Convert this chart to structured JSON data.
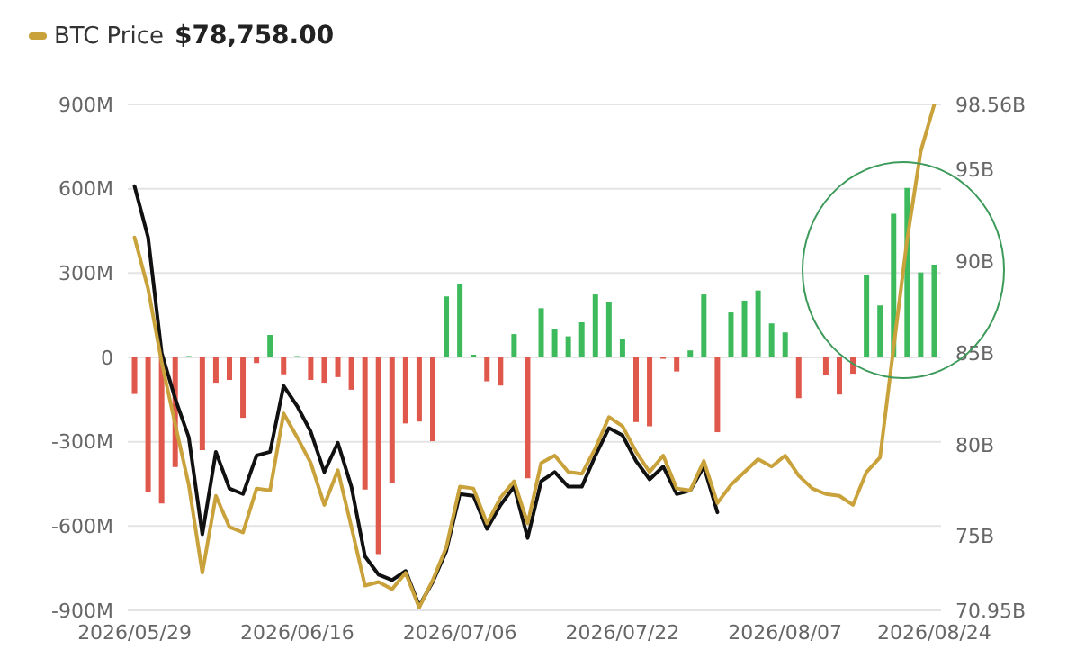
{
  "chart_data": {
    "type": "bar",
    "categories": [
      "2026/05/29",
      null,
      null,
      null,
      null,
      null,
      null,
      null,
      null,
      null,
      null,
      null,
      "2026/06/16",
      null,
      null,
      null,
      null,
      null,
      null,
      null,
      null,
      null,
      null,
      null,
      "2026/07/06",
      null,
      null,
      null,
      null,
      null,
      null,
      null,
      null,
      null,
      null,
      null,
      "2026/07/22",
      null,
      null,
      null,
      null,
      null,
      null,
      null,
      null,
      null,
      null,
      null,
      "2026/08/07",
      null,
      null,
      null,
      null,
      null,
      null,
      null,
      null,
      null,
      null,
      "2026/08/24"
    ],
    "series": [
      {
        "values": [
          -130,
          -480,
          -520,
          -390,
          5,
          -330,
          -90,
          -80,
          -215,
          -20,
          80,
          -60,
          5,
          -80,
          -90,
          -70,
          -115,
          -470,
          -700,
          -445,
          -235,
          -228,
          -298,
          217,
          262,
          10,
          -85,
          -100,
          83,
          -430,
          175,
          100,
          75,
          125,
          224,
          196,
          64,
          -230,
          -245,
          -5,
          -50,
          25,
          224,
          -266,
          160,
          202,
          238,
          121,
          89,
          -145,
          0,
          -64,
          -132,
          -58,
          294,
          185,
          511,
          603,
          302,
          330
        ],
        "colors": [
          "#e0574b",
          "#e0574b",
          "#e0574b",
          "#e0574b",
          "#3dbb5c",
          "#e0574b",
          "#e0574b",
          "#e0574b",
          "#e0574b",
          "#e0574b",
          "#3dbb5c",
          "#e0574b",
          "#3dbb5c",
          "#e0574b",
          "#e0574b",
          "#e0574b",
          "#e0574b",
          "#e0574b",
          "#e0574b",
          "#e0574b",
          "#e0574b",
          "#e0574b",
          "#e0574b",
          "#3dbb5c",
          "#3dbb5c",
          "#3dbb5c",
          "#e0574b",
          "#e0574b",
          "#3dbb5c",
          "#e0574b",
          "#3dbb5c",
          "#3dbb5c",
          "#3dbb5c",
          "#3dbb5c",
          "#3dbb5c",
          "#3dbb5c",
          "#3dbb5c",
          "#e0574b",
          "#e0574b",
          "#e0574b",
          "#e0574b",
          "#3dbb5c",
          "#3dbb5c",
          "#e0574b",
          "#3dbb5c",
          "#3dbb5c",
          "#3dbb5c",
          "#3dbb5c",
          "#3dbb5c",
          "#e0574b",
          "#e0574b",
          "#e0574b",
          "#e0574b",
          "#e0574b",
          "#3dbb5c",
          "#3dbb5c",
          "#3dbb5c",
          "#3dbb5c",
          "#3dbb5c",
          "#3dbb5c"
        ]
      },
      {
        "type": "line",
        "axis": "y2",
        "color": "#111111",
        "values": [
          94.1,
          91.3,
          85.0,
          82.5,
          80.4,
          75.1,
          79.6,
          77.6,
          77.3,
          79.4,
          79.6,
          83.2,
          82.1,
          80.7,
          78.5,
          80.1,
          77.7,
          73.9,
          72.9,
          72.6,
          73.1,
          71.2,
          72.5,
          74.2,
          77.3,
          77.2,
          75.4,
          76.7,
          77.7,
          74.9,
          78.0,
          78.5,
          77.7,
          77.7,
          79.4,
          80.9,
          80.5,
          79.1,
          78.1,
          78.8,
          77.3,
          77.5,
          78.8,
          76.3,
          null,
          null,
          null,
          null,
          null,
          null,
          null,
          null,
          null,
          null,
          null,
          null,
          null,
          null,
          null,
          null
        ]
      },
      {
        "type": "line",
        "axis": "y2",
        "name": "BTC Price",
        "color": "#c9a23c",
        "values": [
          91.3,
          88.5,
          84.5,
          81.1,
          77.8,
          73.0,
          77.2,
          75.5,
          75.2,
          77.6,
          77.5,
          81.7,
          80.4,
          79.0,
          76.7,
          78.6,
          75.5,
          72.3,
          72.5,
          72.1,
          73.0,
          71.1,
          72.6,
          74.4,
          77.7,
          77.6,
          75.7,
          77.1,
          78.0,
          75.7,
          79.0,
          79.4,
          78.5,
          78.4,
          79.8,
          81.5,
          81.0,
          79.6,
          78.5,
          79.4,
          77.6,
          77.5,
          79.1,
          76.8,
          77.8,
          78.5,
          79.2,
          78.8,
          79.4,
          78.3,
          77.6,
          77.3,
          77.2,
          76.7,
          78.5,
          79.3,
          85.3,
          91.2,
          96.0,
          98.56
        ]
      }
    ],
    "ylim": [
      -900,
      900
    ],
    "yticks": [
      {
        "value": -900,
        "label": "-900M"
      },
      {
        "value": -600,
        "label": "-600M"
      },
      {
        "value": -300,
        "label": "-300M"
      },
      0,
      {
        "value": 300,
        "label": "300M"
      },
      {
        "value": 600,
        "label": "600M"
      },
      {
        "value": 900,
        "label": "900M"
      }
    ],
    "y2lim": [
      70.95,
      98.56
    ],
    "y2ticks": [
      {
        "value": 70.95,
        "label": "70.95B"
      },
      {
        "value": 75,
        "label": "75B"
      },
      {
        "value": 80,
        "label": "80B"
      },
      {
        "value": 85,
        "label": "85B"
      },
      {
        "value": 90,
        "label": "90B"
      },
      {
        "value": 95,
        "label": "95B"
      },
      {
        "value": 98.56,
        "label": "98.56B"
      }
    ],
    "annotations": [
      "$78,758.00"
    ],
    "grid": "y",
    "legend": "top left",
    "marker": "none"
  }
}
